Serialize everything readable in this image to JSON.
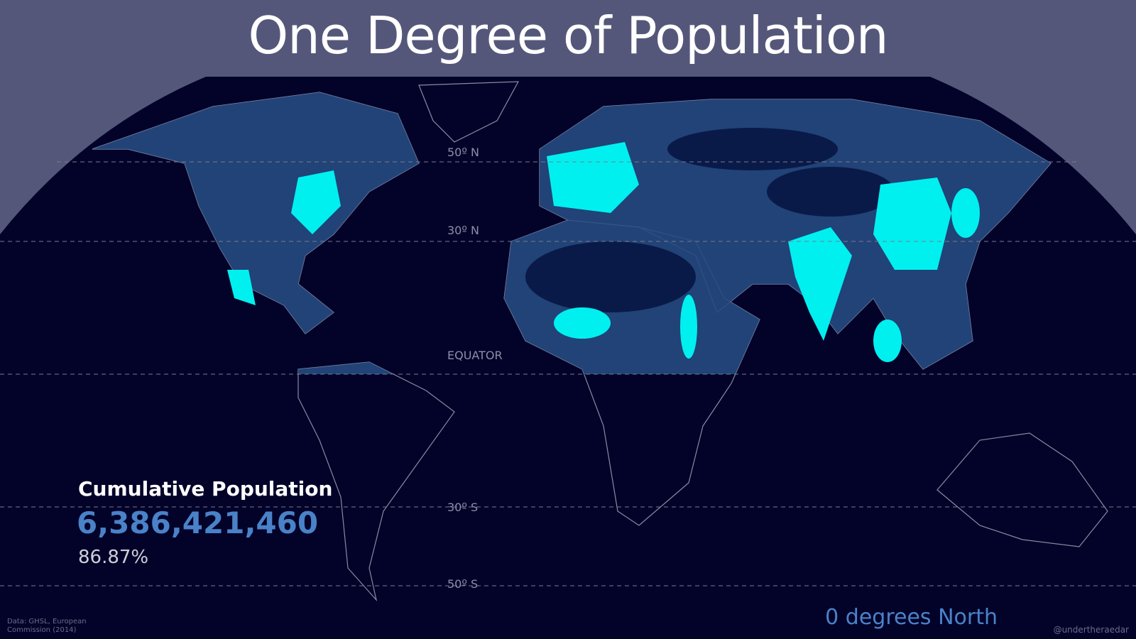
{
  "title": "One Degree of Population",
  "map": {
    "latitude_labels": [
      "50º N",
      "30º N",
      "EQUATOR",
      "30º S",
      "50º S"
    ],
    "current_latitude": "0 degrees North"
  },
  "stats": {
    "label": "Cumulative Population",
    "population": "6,386,421,460",
    "share": "86.87%"
  },
  "footer": {
    "source": "Data: GHSL, European Commission (2014)",
    "credit": "@undertheraedar"
  }
}
